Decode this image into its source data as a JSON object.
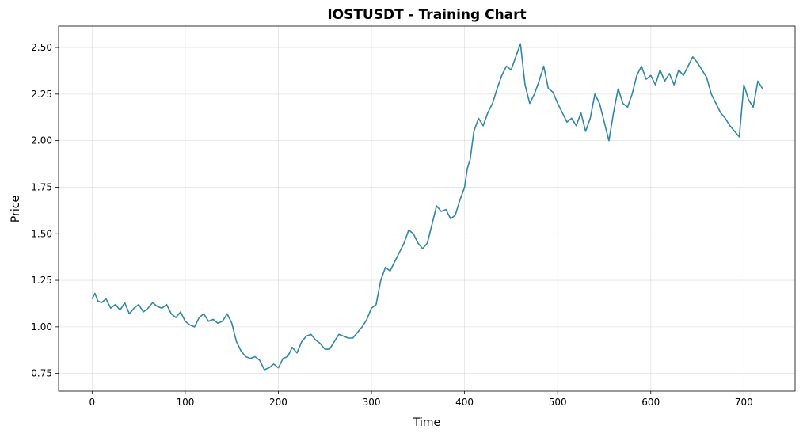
{
  "chart_data": {
    "type": "line",
    "title": "IOSTUSDT - Training Chart",
    "xlabel": "Time",
    "ylabel": "Price",
    "xlim": [
      -36,
      755
    ],
    "ylim": [
      0.655,
      2.615
    ],
    "x_ticks": [
      0,
      100,
      200,
      300,
      400,
      500,
      600,
      700
    ],
    "y_ticks": [
      0.75,
      1.0,
      1.25,
      1.5,
      1.75,
      2.0,
      2.25,
      2.5
    ],
    "y_tick_labels": [
      "0.75",
      "1.00",
      "1.25",
      "1.50",
      "1.75",
      "2.00",
      "2.25",
      "2.50"
    ],
    "grid": true,
    "line_color": "#2e86ab",
    "series": [
      {
        "x": [
          0,
          3,
          6,
          10,
          15,
          20,
          25,
          30,
          35,
          40,
          45,
          50,
          55,
          60,
          65,
          70,
          75,
          80,
          85,
          90,
          95,
          100,
          105,
          110,
          115,
          120,
          125,
          130,
          135,
          140,
          145,
          150,
          155,
          160,
          165,
          170,
          175,
          180,
          185,
          190,
          195,
          200,
          205,
          210,
          215,
          220,
          225,
          230,
          235,
          240,
          245,
          250,
          255,
          260,
          265,
          270,
          275,
          280,
          285,
          290,
          295,
          300,
          305,
          310,
          315,
          320,
          325,
          330,
          335,
          340,
          345,
          350,
          355,
          360,
          365,
          370,
          375,
          380,
          385,
          390,
          395,
          400,
          403,
          406,
          410,
          415,
          420,
          425,
          430,
          435,
          440,
          445,
          450,
          455,
          460,
          465,
          470,
          475,
          480,
          485,
          490,
          495,
          500,
          505,
          510,
          515,
          520,
          525,
          530,
          535,
          540,
          545,
          550,
          555,
          560,
          565,
          570,
          575,
          580,
          585,
          590,
          595,
          600,
          605,
          610,
          615,
          620,
          625,
          630,
          635,
          640,
          645,
          650,
          655,
          660,
          665,
          670,
          675,
          680,
          685,
          690,
          695,
          700,
          705,
          710,
          715,
          720
        ],
        "y": [
          1.15,
          1.18,
          1.14,
          1.13,
          1.15,
          1.1,
          1.12,
          1.09,
          1.13,
          1.07,
          1.1,
          1.12,
          1.08,
          1.1,
          1.13,
          1.11,
          1.1,
          1.12,
          1.07,
          1.05,
          1.08,
          1.03,
          1.01,
          1.0,
          1.05,
          1.07,
          1.03,
          1.04,
          1.02,
          1.03,
          1.07,
          1.02,
          0.92,
          0.87,
          0.84,
          0.83,
          0.84,
          0.82,
          0.77,
          0.78,
          0.8,
          0.78,
          0.83,
          0.84,
          0.89,
          0.86,
          0.92,
          0.95,
          0.96,
          0.93,
          0.91,
          0.88,
          0.88,
          0.92,
          0.96,
          0.95,
          0.94,
          0.94,
          0.97,
          1.0,
          1.04,
          1.1,
          1.12,
          1.25,
          1.32,
          1.3,
          1.35,
          1.4,
          1.45,
          1.52,
          1.5,
          1.45,
          1.42,
          1.45,
          1.55,
          1.65,
          1.62,
          1.63,
          1.58,
          1.6,
          1.68,
          1.75,
          1.85,
          1.9,
          2.05,
          2.12,
          2.08,
          2.15,
          2.2,
          2.28,
          2.35,
          2.4,
          2.38,
          2.45,
          2.52,
          2.3,
          2.2,
          2.25,
          2.32,
          2.4,
          2.28,
          2.26,
          2.2,
          2.15,
          2.1,
          2.12,
          2.08,
          2.15,
          2.05,
          2.12,
          2.25,
          2.2,
          2.1,
          2.0,
          2.15,
          2.28,
          2.2,
          2.18,
          2.25,
          2.35,
          2.4,
          2.33,
          2.35,
          2.3,
          2.38,
          2.32,
          2.36,
          2.3,
          2.38,
          2.35,
          2.4,
          2.45,
          2.42,
          2.38,
          2.34,
          2.25,
          2.2,
          2.15,
          2.12,
          2.08,
          2.05,
          2.02,
          2.3,
          2.22,
          2.18,
          2.32,
          2.28
        ]
      }
    ]
  }
}
